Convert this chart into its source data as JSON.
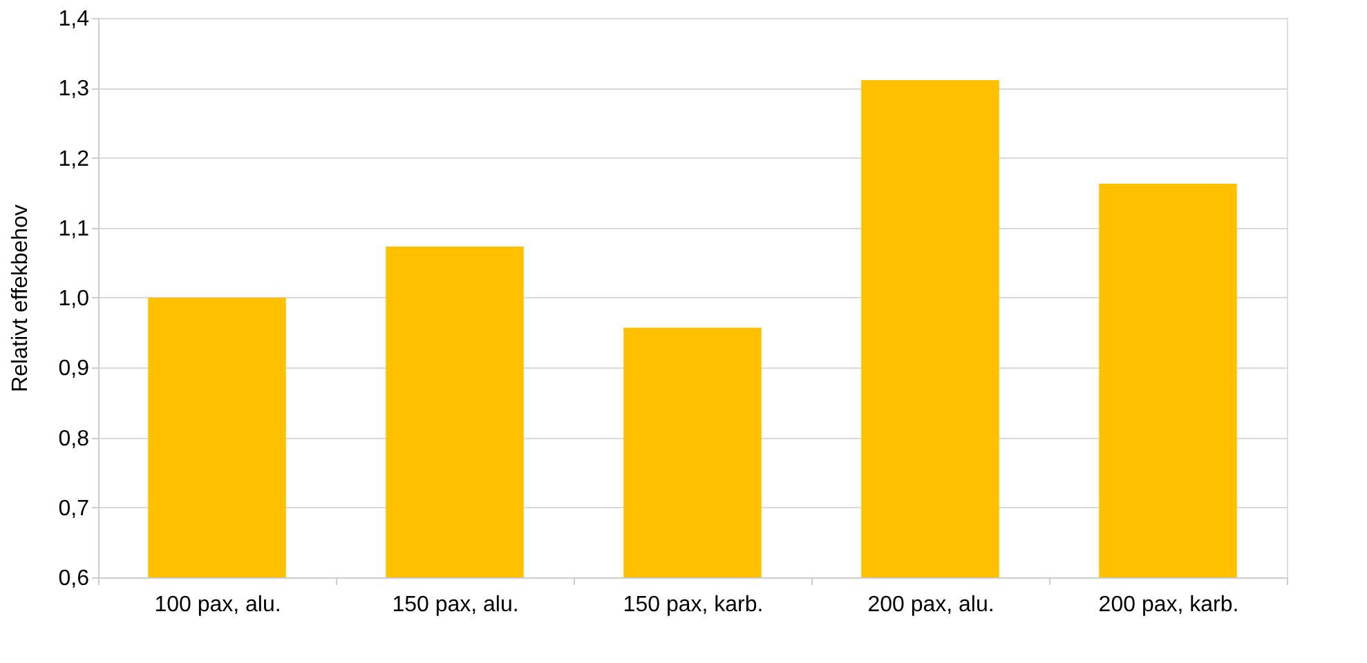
{
  "chart_data": {
    "type": "bar",
    "ylabel": "Relativt effekbehov",
    "categories": [
      "100 pax, alu.",
      "150 pax, alu.",
      "150 pax, karb.",
      "200 pax, alu.",
      "200 pax, karb."
    ],
    "values": [
      1.0,
      1.073,
      0.957,
      1.311,
      1.163
    ],
    "color": "#ffc000",
    "ylim": [
      0.6,
      1.4
    ],
    "yticks": [
      {
        "value": 0.6,
        "label": "0,6"
      },
      {
        "value": 0.7,
        "label": "0,7"
      },
      {
        "value": 0.8,
        "label": "0,8"
      },
      {
        "value": 0.9,
        "label": "0,9"
      },
      {
        "value": 1.0,
        "label": "1,0"
      },
      {
        "value": 1.1,
        "label": "1,1"
      },
      {
        "value": 1.2,
        "label": "1,2"
      },
      {
        "value": 1.3,
        "label": "1,3"
      },
      {
        "value": 1.4,
        "label": "1,4"
      }
    ],
    "grid": "y"
  }
}
